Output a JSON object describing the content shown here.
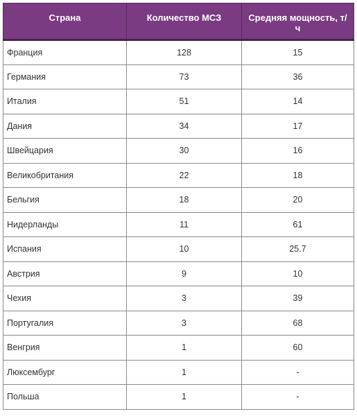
{
  "table": {
    "headers": [
      "Страна",
      "Количество МСЗ",
      "Средняя мощность, т/ч"
    ],
    "rows": [
      [
        "Франция",
        "128",
        "15"
      ],
      [
        "Германия",
        "73",
        "36"
      ],
      [
        "Италия",
        "51",
        "14"
      ],
      [
        "Дания",
        "34",
        "17"
      ],
      [
        "Швейцария",
        "30",
        "16"
      ],
      [
        "Великобритания",
        "22",
        "18"
      ],
      [
        "Бельгия",
        "18",
        "20"
      ],
      [
        "Нидерланды",
        "11",
        "61"
      ],
      [
        "Испания",
        "10",
        "25.7"
      ],
      [
        "Австрия",
        "9",
        "10"
      ],
      [
        "Чехия",
        "3",
        "39"
      ],
      [
        "Португалия",
        "3",
        "68"
      ],
      [
        "Венгрия",
        "1",
        "60"
      ],
      [
        "Люксембург",
        "1",
        "-"
      ],
      [
        "Польша",
        "1",
        "-"
      ]
    ]
  },
  "colors": {
    "header_bg": "#7a3b82",
    "header_text": "#ffffff",
    "border": "#8a8a8a"
  }
}
